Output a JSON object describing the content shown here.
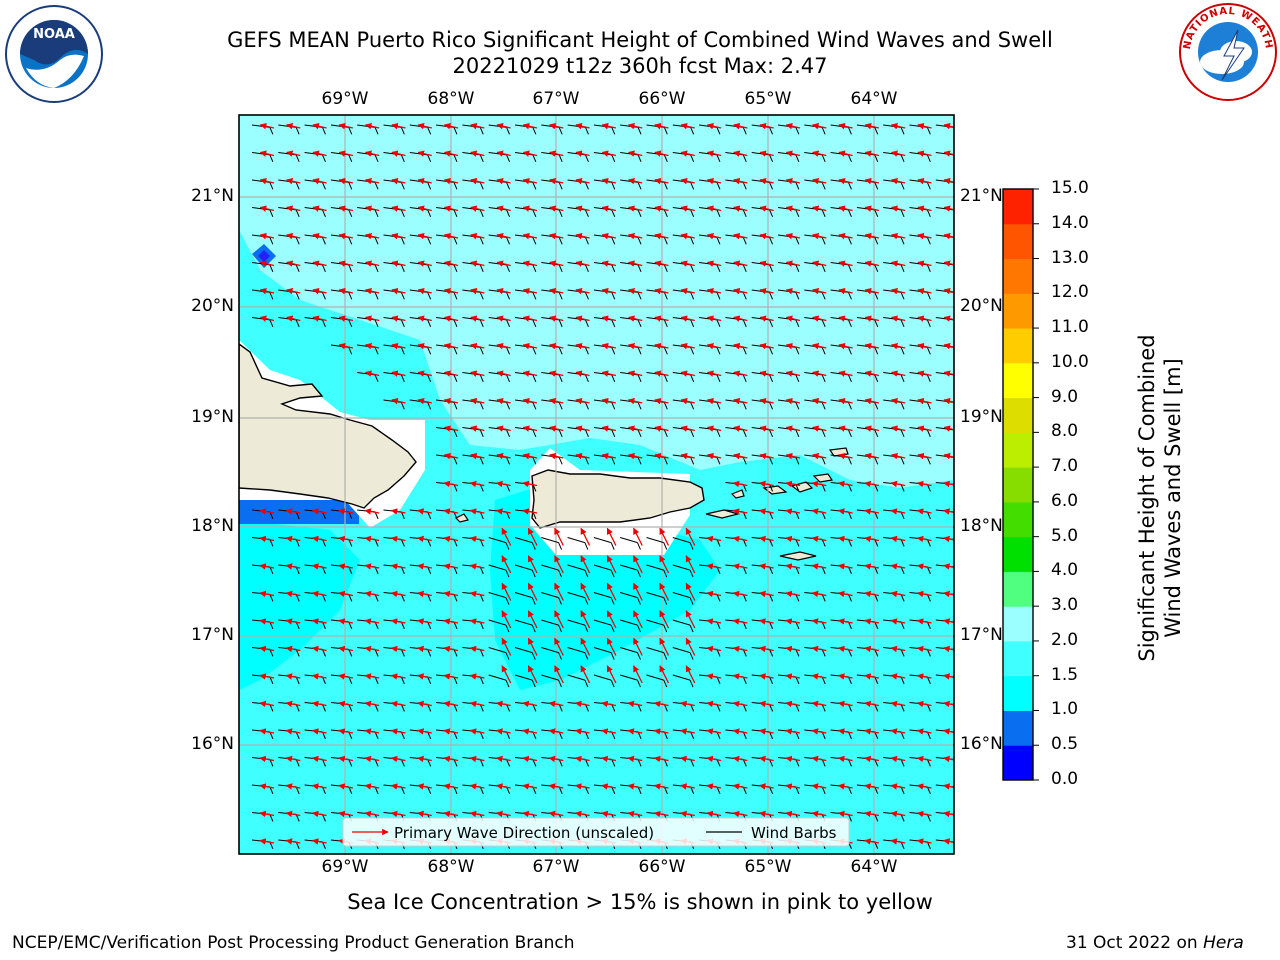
{
  "title": {
    "line1": "GEFS MEAN Puerto Rico Significant Height of Combined Wind Waves and Swell",
    "line2": "20221029 t12z 360h fcst   Max: 2.47"
  },
  "logos": {
    "left": "NOAA",
    "right": "NATIONAL WEATHER SERVICE"
  },
  "axes": {
    "lon_labels": [
      "69°W",
      "68°W",
      "67°W",
      "66°W",
      "65°W",
      "64°W"
    ],
    "lat_labels": [
      "21°N",
      "20°N",
      "19°N",
      "18°N",
      "17°N",
      "16°N"
    ]
  },
  "legend": {
    "wave_label": "Primary Wave Direction (unscaled)",
    "barb_label": "Wind Barbs"
  },
  "colorbar": {
    "label_line1": "Significant Height of Combined",
    "label_line2": "Wind Waves and Swell [m]",
    "ticks": [
      "0.0",
      "0.5",
      "1.0",
      "1.5",
      "2.0",
      "3.0",
      "4.0",
      "5.0",
      "6.0",
      "7.0",
      "8.0",
      "9.0",
      "10.0",
      "11.0",
      "12.0",
      "13.0",
      "14.0",
      "15.0"
    ],
    "colors": [
      "#0000ff",
      "#0a6ef0",
      "#00ffff",
      "#40ffff",
      "#9cffff",
      "#50ff80",
      "#00e000",
      "#44dd00",
      "#88dd00",
      "#bbee00",
      "#dddd00",
      "#ffff00",
      "#ffcc00",
      "#ff9900",
      "#ff7700",
      "#ff5500",
      "#ff2200"
    ]
  },
  "caption": "Sea Ice Concentration > 15% is shown in pink to yellow",
  "footer": {
    "left": "NCEP/EMC/Verification Post Processing Product Generation Branch",
    "date": "31 Oct 2022 on ",
    "machine": "Hera"
  },
  "colors": {
    "land": "#eeead8",
    "sea_main": "#40ffff",
    "sea_calm": "#9cffff",
    "sea_low": "#00ffff",
    "arrow": "#ee0000",
    "barb": "#000000"
  }
}
